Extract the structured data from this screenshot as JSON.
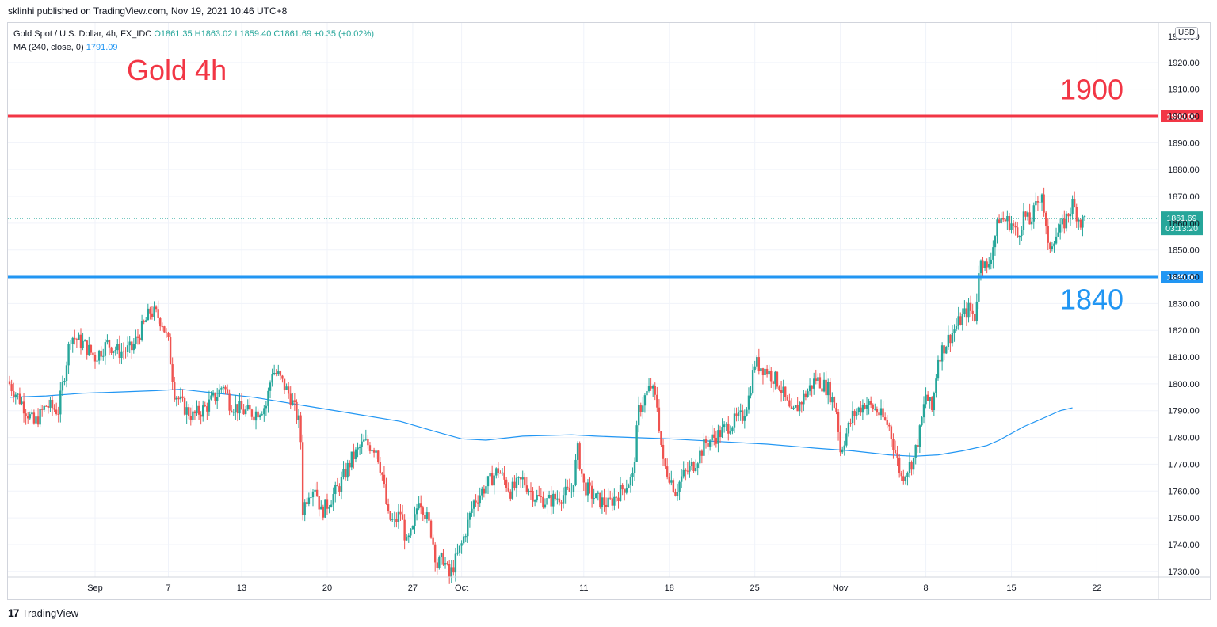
{
  "header": {
    "published": "sklinhi published on TradingView.com, Nov 19, 2021 10:46 UTC+8"
  },
  "legend": {
    "symbol": "Gold Spot / U.S. Dollar, 4h, FX_IDC",
    "ohlc": "O1861.35  H1863.02  L1859.40  C1861.69  +0.35 (+0.02%)",
    "ma_label": "MA (240, close, 0)",
    "ma_value": "1791.09"
  },
  "currency": "USD",
  "footer": {
    "brand": "TradingView",
    "logo": "17"
  },
  "chart_data": {
    "type": "candlestick",
    "title": "Gold 4h",
    "ylim": [
      1725,
      1930
    ],
    "y_ticks": [
      1730,
      1740,
      1750,
      1760,
      1770,
      1780,
      1790,
      1800,
      1810,
      1820,
      1830,
      1840,
      1850,
      1860,
      1870,
      1880,
      1890,
      1900,
      1910,
      1920
    ],
    "y_tick_labels": [
      "1730.00",
      "1740.00",
      "1750.00",
      "1760.00",
      "1770.00",
      "1780.00",
      "1790.00",
      "1800.00",
      "1810.00",
      "1820.00",
      "1830.00",
      "1840.00",
      "1850.00",
      "1860.00",
      "1870.00",
      "1880.00",
      "1890.00",
      "1900.00",
      "1910.00",
      "1920.00"
    ],
    "y_top_partial_label": "1930.00",
    "x_ticks": [
      {
        "label": "Sep",
        "day": 1
      },
      {
        "label": "7",
        "day": 7
      },
      {
        "label": "13",
        "day": 13
      },
      {
        "label": "20",
        "day": 20
      },
      {
        "label": "27",
        "day": 27
      },
      {
        "label": "Oct",
        "day": 31
      },
      {
        "label": "11",
        "day": 41
      },
      {
        "label": "18",
        "day": 48
      },
      {
        "label": "25",
        "day": 55
      },
      {
        "label": "Nov",
        "day": 62
      },
      {
        "label": "8",
        "day": 69
      },
      {
        "label": "15",
        "day": 76
      },
      {
        "label": "22",
        "day": 83
      }
    ],
    "horizontal_lines": [
      {
        "value": 1900,
        "label": "1900",
        "axis_label": "1900.00",
        "color": "#f23645"
      },
      {
        "value": 1840,
        "label": "1840",
        "axis_label": "1840.00",
        "color": "#2196f3"
      }
    ],
    "last_price": {
      "value": 1861.69,
      "label": "1861.69",
      "countdown": "03:13:20",
      "color": "#26a69a"
    },
    "colors": {
      "up": "#26a69a",
      "down": "#ef5350",
      "ma": "#2196f3",
      "grid": "#f0f3fa"
    },
    "closes_key": [
      [
        -6,
        1800
      ],
      [
        -5,
        1793
      ],
      [
        -4,
        1785
      ],
      [
        -3,
        1792
      ],
      [
        -2,
        1790
      ],
      [
        -1,
        1818
      ],
      [
        0,
        1815
      ],
      [
        1,
        1810
      ],
      [
        2,
        1815
      ],
      [
        3,
        1812
      ],
      [
        4,
        1813
      ],
      [
        5,
        1822
      ],
      [
        5.5,
        1827
      ],
      [
        6,
        1826
      ],
      [
        6.5,
        1823
      ],
      [
        7,
        1815
      ],
      [
        7.5,
        1797
      ],
      [
        8,
        1793
      ],
      [
        8.5,
        1790
      ],
      [
        9,
        1788
      ],
      [
        10,
        1791
      ],
      [
        11,
        1796
      ],
      [
        11.5,
        1800
      ],
      [
        12,
        1793
      ],
      [
        13,
        1790
      ],
      [
        14,
        1789
      ],
      [
        15,
        1792
      ],
      [
        15.5,
        1805
      ],
      [
        16,
        1803
      ],
      [
        17,
        1795
      ],
      [
        17.8,
        1784
      ],
      [
        18,
        1753
      ],
      [
        18.5,
        1760
      ],
      [
        19,
        1762
      ],
      [
        19.5,
        1752
      ],
      [
        20,
        1755
      ],
      [
        21,
        1762
      ],
      [
        22,
        1772
      ],
      [
        23,
        1778
      ],
      [
        24,
        1776
      ],
      [
        24.5,
        1766
      ],
      [
        25,
        1750
      ],
      [
        25.5,
        1748
      ],
      [
        26,
        1752
      ],
      [
        26.5,
        1740
      ],
      [
        27,
        1745
      ],
      [
        27.5,
        1758
      ],
      [
        28,
        1752
      ],
      [
        28.5,
        1745
      ],
      [
        29,
        1732
      ],
      [
        29.5,
        1735
      ],
      [
        30,
        1728
      ],
      [
        31,
        1740
      ],
      [
        32,
        1756
      ],
      [
        33,
        1762
      ],
      [
        34,
        1768
      ],
      [
        35,
        1760
      ],
      [
        36,
        1764
      ],
      [
        37,
        1758
      ],
      [
        38,
        1756
      ],
      [
        39,
        1758
      ],
      [
        40,
        1760
      ],
      [
        40.5,
        1775
      ],
      [
        41,
        1762
      ],
      [
        42,
        1757
      ],
      [
        43,
        1755
      ],
      [
        44,
        1760
      ],
      [
        45,
        1765
      ],
      [
        45.5,
        1790
      ],
      [
        46,
        1795
      ],
      [
        46.5,
        1799
      ],
      [
        47,
        1792
      ],
      [
        47.5,
        1770
      ],
      [
        48,
        1766
      ],
      [
        48.5,
        1760
      ],
      [
        49,
        1765
      ],
      [
        50,
        1770
      ],
      [
        51,
        1778
      ],
      [
        52,
        1781
      ],
      [
        53,
        1785
      ],
      [
        54,
        1788
      ],
      [
        54.5,
        1795
      ],
      [
        55,
        1808
      ],
      [
        56,
        1805
      ],
      [
        57,
        1800
      ],
      [
        58,
        1788
      ],
      [
        59,
        1795
      ],
      [
        60,
        1802
      ],
      [
        61,
        1798
      ],
      [
        61.7,
        1790
      ],
      [
        62,
        1775
      ],
      [
        63,
        1788
      ],
      [
        64,
        1793
      ],
      [
        65,
        1790
      ],
      [
        66,
        1784
      ],
      [
        67,
        1765
      ],
      [
        68,
        1772
      ],
      [
        68.5,
        1782
      ],
      [
        69,
        1796
      ],
      [
        69.5,
        1790
      ],
      [
        70,
        1810
      ],
      [
        71,
        1818
      ],
      [
        72,
        1825
      ],
      [
        72.5,
        1828
      ],
      [
        73,
        1825
      ],
      [
        73.5,
        1848
      ],
      [
        74,
        1842
      ],
      [
        74.5,
        1852
      ],
      [
        75,
        1862
      ],
      [
        76,
        1860
      ],
      [
        76.5,
        1855
      ],
      [
        77,
        1863
      ],
      [
        77.5,
        1860
      ],
      [
        78,
        1866
      ],
      [
        78.5,
        1872
      ],
      [
        79,
        1850
      ],
      [
        79.5,
        1855
      ],
      [
        80,
        1857
      ],
      [
        80.5,
        1862
      ],
      [
        81,
        1867
      ],
      [
        81.7,
        1860
      ],
      [
        82,
        1861.69
      ]
    ],
    "ma_240": [
      [
        -6,
        1795
      ],
      [
        -3,
        1795.5
      ],
      [
        0,
        1796.5
      ],
      [
        3,
        1797
      ],
      [
        6,
        1797.5
      ],
      [
        8,
        1798
      ],
      [
        10,
        1797
      ],
      [
        14,
        1795
      ],
      [
        18,
        1792
      ],
      [
        22,
        1789
      ],
      [
        26,
        1786
      ],
      [
        29,
        1782
      ],
      [
        31,
        1779.5
      ],
      [
        33,
        1779
      ],
      [
        36,
        1780.5
      ],
      [
        40,
        1781
      ],
      [
        42,
        1780.5
      ],
      [
        45,
        1780
      ],
      [
        48,
        1779.5
      ],
      [
        52,
        1778.5
      ],
      [
        56,
        1777.5
      ],
      [
        60,
        1776
      ],
      [
        63,
        1775
      ],
      [
        66,
        1773.5
      ],
      [
        68,
        1773
      ],
      [
        70,
        1773.5
      ],
      [
        72,
        1775
      ],
      [
        74,
        1777
      ],
      [
        75,
        1779
      ],
      [
        76,
        1781.5
      ],
      [
        77,
        1784
      ],
      [
        78,
        1786
      ],
      [
        79,
        1788
      ],
      [
        80,
        1790
      ],
      [
        81,
        1791.09
      ]
    ]
  }
}
